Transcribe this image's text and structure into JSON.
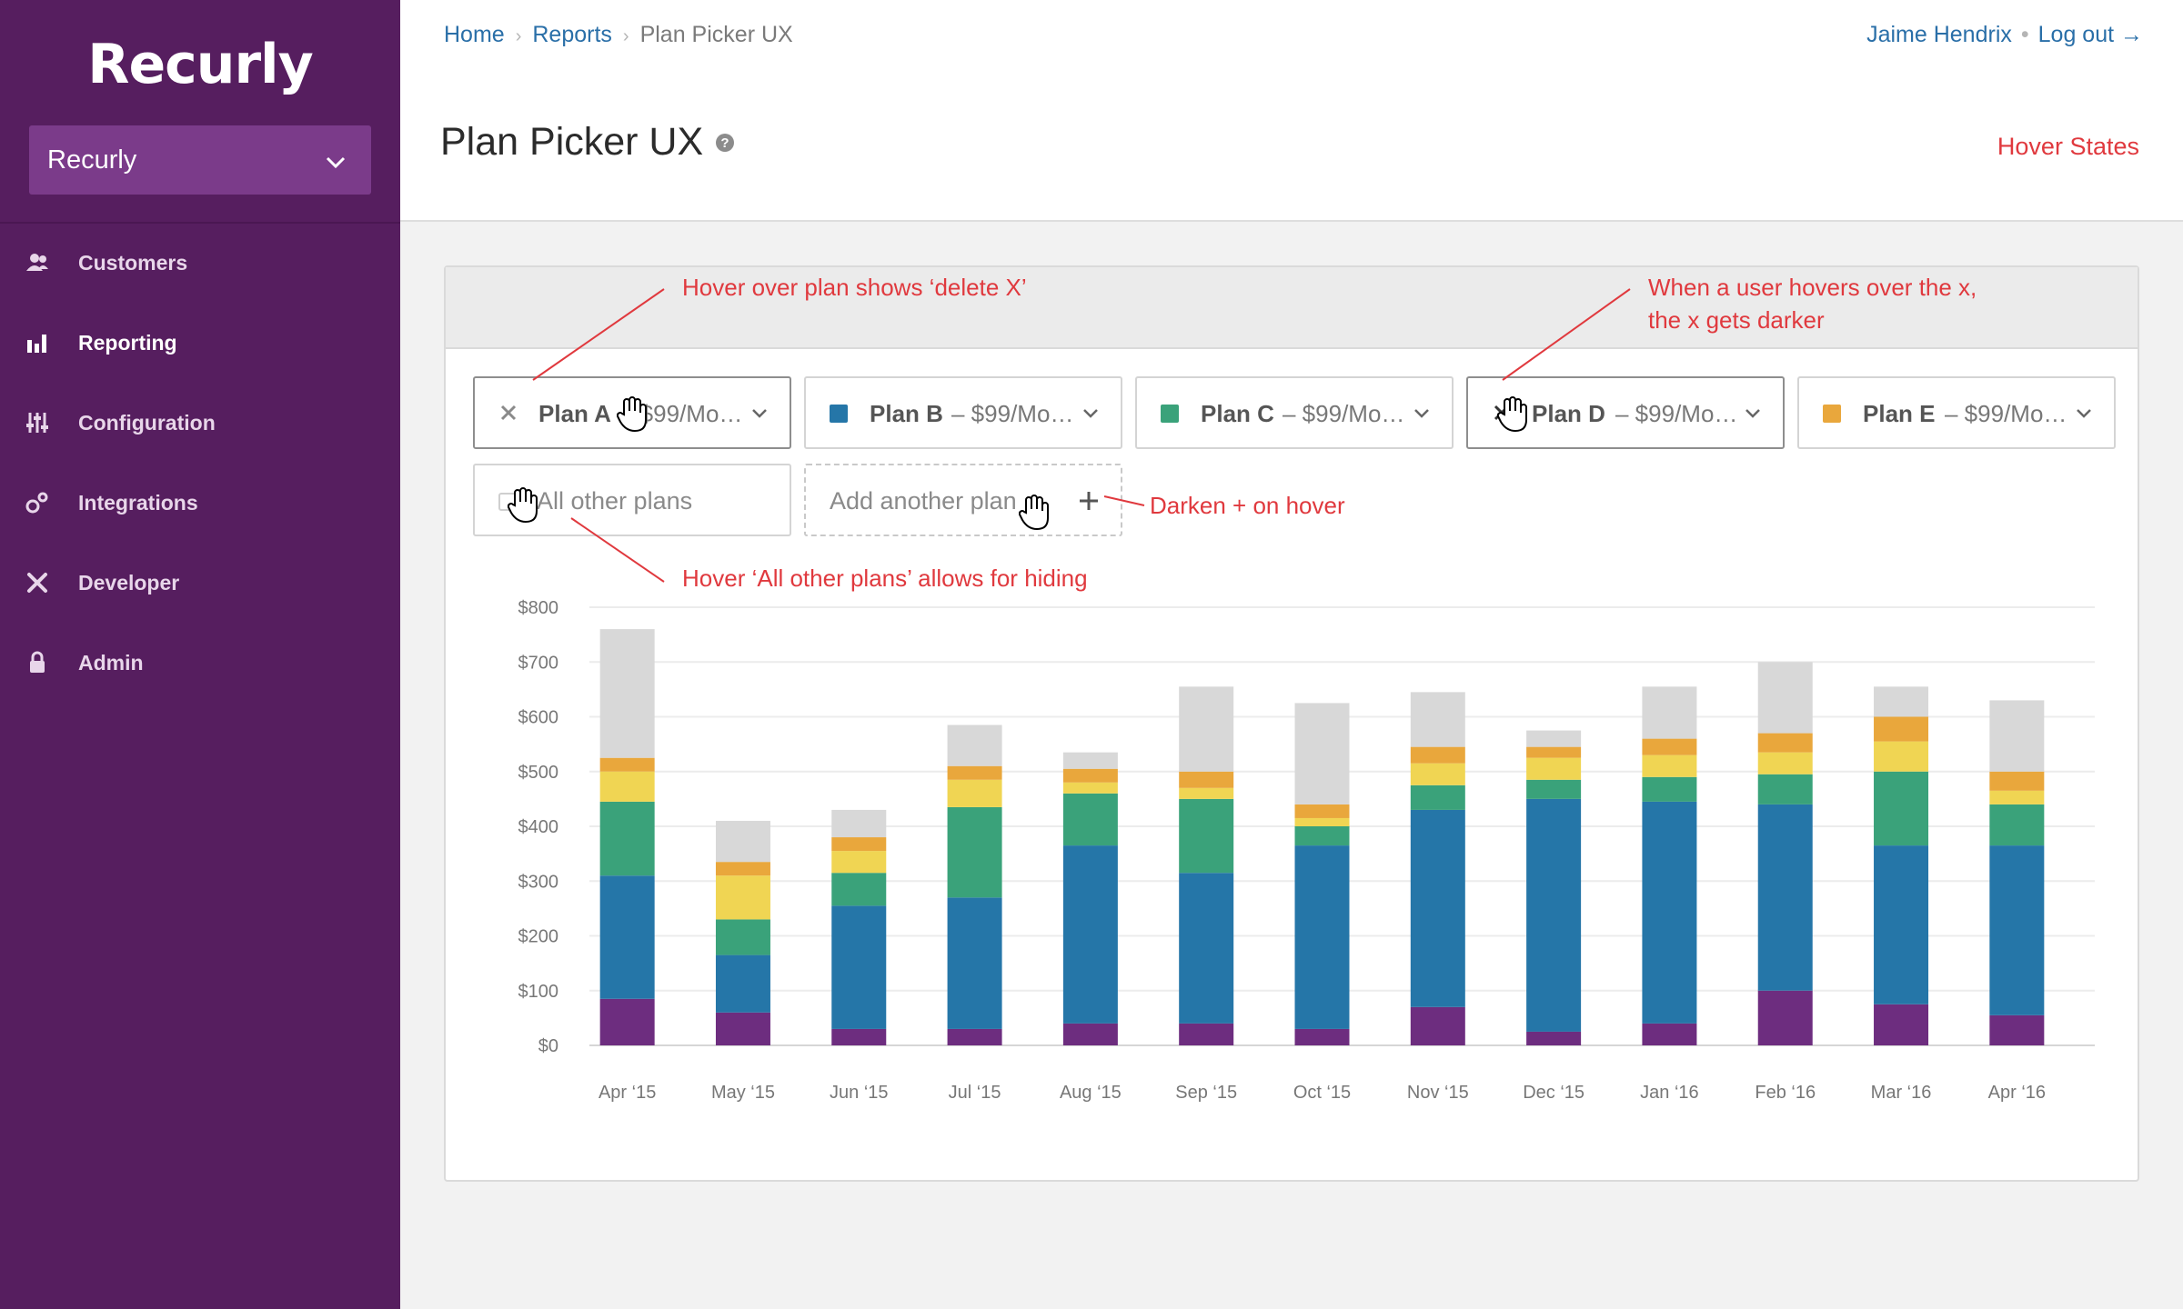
{
  "sidebar": {
    "logo": "Recurly",
    "account": "Recurly",
    "items": [
      {
        "label": "Customers",
        "icon": "customers-icon"
      },
      {
        "label": "Reporting",
        "icon": "reporting-icon"
      },
      {
        "label": "Configuration",
        "icon": "configuration-icon"
      },
      {
        "label": "Integrations",
        "icon": "integrations-icon"
      },
      {
        "label": "Developer",
        "icon": "developer-icon"
      },
      {
        "label": "Admin",
        "icon": "lock-icon"
      }
    ]
  },
  "topbar": {
    "breadcrumbs": [
      "Home",
      "Reports",
      "Plan Picker UX"
    ],
    "user": "Jaime Hendrix",
    "logout": "Log out →"
  },
  "header": {
    "title": "Plan Picker UX",
    "hover_states": "Hover States"
  },
  "plans": [
    {
      "name": "Plan A",
      "price": "– $99/Mo…",
      "color": null,
      "state": "hover-show-delete"
    },
    {
      "name": "Plan B",
      "price": "– $99/Mo…",
      "color": "#2576a8"
    },
    {
      "name": "Plan C",
      "price": "– $99/Mo…",
      "color": "#3aa27a"
    },
    {
      "name": "Plan D",
      "price": "– $99/Mo…",
      "color": null,
      "state": "hover-x-darker"
    },
    {
      "name": "Plan E",
      "price": "– $99/Mo…",
      "color": "#e9a73c"
    }
  ],
  "controls": {
    "other_plans": "All other plans",
    "add_plan": "Add another plan"
  },
  "annotations": {
    "a1": "Hover over plan shows ‘delete X’",
    "a2_line1": "When a user hovers over the x,",
    "a2_line2": "the x gets darker",
    "a3": "Darken + on hover",
    "a4": "Hover ‘All other plans’ allows for hiding"
  },
  "chart_data": {
    "type": "bar",
    "stacked": true,
    "categories": [
      "Apr ‘15",
      "May ‘15",
      "Jun ‘15",
      "Jul ‘15",
      "Aug ‘15",
      "Sep ‘15",
      "Oct ‘15",
      "Nov ‘15",
      "Dec ‘15",
      "Jan ‘16",
      "Feb ‘16",
      "Mar  ‘16",
      "Apr ‘16"
    ],
    "y_ticks": [
      "$0",
      "$100",
      "$200",
      "$300",
      "$400",
      "$500",
      "$600",
      "$700",
      "$800"
    ],
    "ylim": [
      0,
      800
    ],
    "grid": true,
    "series": [
      {
        "color": "#6d2d7f",
        "values": [
          85,
          60,
          30,
          30,
          40,
          40,
          30,
          70,
          25,
          40,
          100,
          75,
          55
        ]
      },
      {
        "color": "#2576a8",
        "values": [
          225,
          105,
          225,
          240,
          325,
          275,
          335,
          360,
          425,
          405,
          340,
          290,
          310
        ]
      },
      {
        "color": "#3aa27a",
        "values": [
          135,
          65,
          60,
          165,
          95,
          135,
          35,
          45,
          35,
          45,
          55,
          135,
          75
        ]
      },
      {
        "color": "#f0d553",
        "values": [
          55,
          80,
          40,
          50,
          20,
          20,
          15,
          40,
          40,
          40,
          40,
          55,
          25
        ]
      },
      {
        "color": "#e9a73c",
        "values": [
          25,
          25,
          25,
          25,
          25,
          30,
          25,
          30,
          20,
          30,
          35,
          45,
          35
        ]
      },
      {
        "color": "#d8d8d8",
        "values": [
          235,
          75,
          50,
          75,
          30,
          155,
          185,
          100,
          30,
          95,
          130,
          55,
          130
        ]
      }
    ]
  }
}
